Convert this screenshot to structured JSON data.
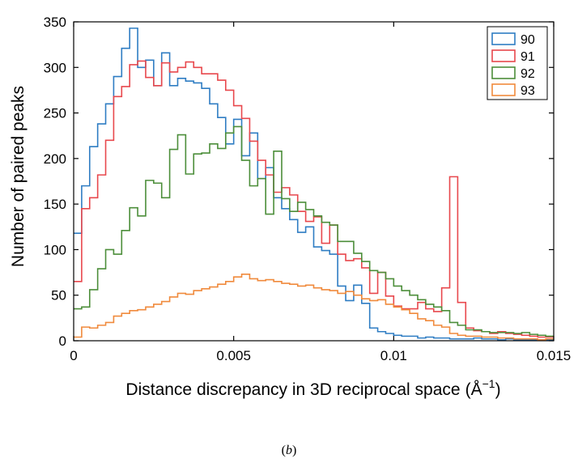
{
  "chart_data": {
    "type": "histogram",
    "xlabel": "Distance discrepancy in 3D reciprocal space",
    "xunit": "Å",
    "xunit_exp": "−1",
    "ylabel": "Number of paired peaks",
    "xlim": [
      0,
      0.015
    ],
    "ylim": [
      0,
      350
    ],
    "xticks": [
      0,
      0.005,
      0.01,
      0.015
    ],
    "xtick_labels": [
      "0",
      "0.005",
      "0.01",
      "0.015"
    ],
    "yticks": [
      0,
      50,
      100,
      150,
      200,
      250,
      300,
      350
    ],
    "ytick_labels": [
      "0",
      "50",
      "100",
      "150",
      "200",
      "250",
      "300",
      "350"
    ],
    "bin_width": 0.00025,
    "bin_starts_at": 0,
    "grid": false,
    "legend_position": "top-right",
    "series": [
      {
        "name": "90",
        "color": "#2f7dc3",
        "values": [
          118,
          170,
          213,
          238,
          260,
          290,
          321,
          343,
          300,
          308,
          280,
          316,
          280,
          288,
          285,
          283,
          277,
          260,
          245,
          216,
          243,
          203,
          228,
          178,
          190,
          157,
          145,
          133,
          119,
          125,
          103,
          99,
          95,
          60,
          44,
          61,
          41,
          14,
          10,
          8,
          6,
          5,
          5,
          3,
          4,
          3,
          3,
          2,
          2,
          2,
          3,
          2,
          2,
          1,
          2,
          1,
          1,
          1,
          1,
          1
        ]
      },
      {
        "name": "91",
        "color": "#e8484d",
        "values": [
          65,
          145,
          157,
          182,
          220,
          268,
          279,
          303,
          307,
          289,
          280,
          305,
          295,
          300,
          306,
          300,
          293,
          293,
          286,
          275,
          258,
          244,
          219,
          198,
          182,
          163,
          168,
          160,
          142,
          131,
          136,
          107,
          127,
          95,
          88,
          90,
          80,
          52,
          75,
          49,
          38,
          35,
          35,
          42,
          35,
          32,
          58,
          180,
          42,
          14,
          11,
          10,
          8,
          10,
          8,
          7,
          6,
          5,
          4,
          4
        ]
      },
      {
        "name": "92",
        "color": "#4c8e3a",
        "values": [
          35,
          37,
          56,
          79,
          100,
          95,
          121,
          146,
          137,
          176,
          173,
          157,
          210,
          226,
          183,
          205,
          206,
          216,
          211,
          228,
          235,
          198,
          170,
          178,
          139,
          208,
          156,
          142,
          152,
          144,
          137,
          130,
          127,
          109,
          109,
          96,
          87,
          77,
          75,
          68,
          60,
          55,
          50,
          45,
          40,
          37,
          33,
          20,
          17,
          12,
          12,
          10,
          9,
          9,
          9,
          8,
          9,
          7,
          6,
          5
        ]
      },
      {
        "name": "93",
        "color": "#f08a3c",
        "values": [
          4,
          15,
          14,
          17,
          20,
          27,
          30,
          33,
          34,
          37,
          40,
          43,
          48,
          52,
          51,
          55,
          57,
          59,
          62,
          65,
          70,
          73,
          68,
          66,
          67,
          65,
          63,
          62,
          60,
          61,
          58,
          56,
          55,
          52,
          54,
          50,
          46,
          44,
          45,
          40,
          37,
          34,
          30,
          24,
          22,
          17,
          15,
          8,
          6,
          5,
          5,
          4,
          4,
          3,
          3,
          2,
          2,
          2,
          1,
          2
        ]
      }
    ]
  },
  "caption": {
    "open": "(",
    "letter": "b",
    "close": ")"
  }
}
